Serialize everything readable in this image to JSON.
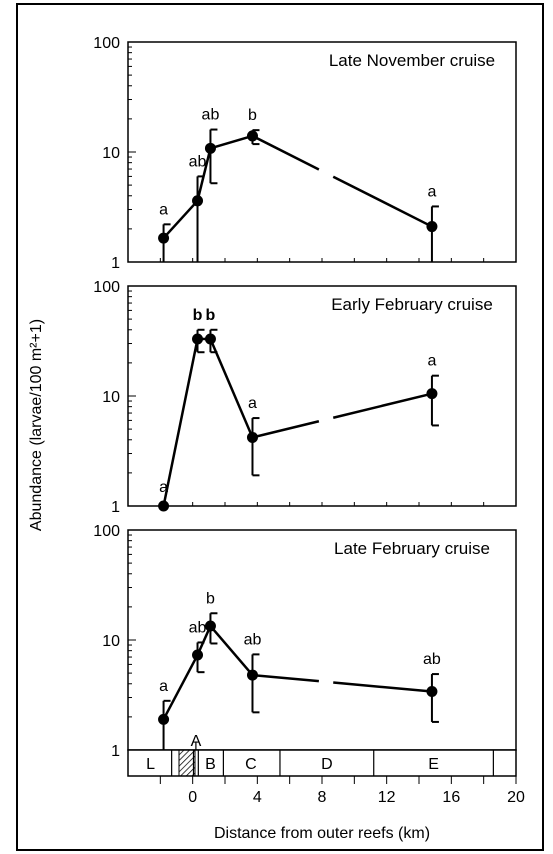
{
  "figure": {
    "ylabel": "Abundance (larvae/100 m²+1)",
    "xlabel": "Distance from outer reefs (km)",
    "x_ticks": [
      "0",
      "4",
      "8",
      "12",
      "16",
      "20"
    ],
    "y_ticks": [
      "1",
      "10",
      "100"
    ]
  },
  "zone_bar": {
    "labels": [
      "L",
      "A",
      "B",
      "C",
      "D",
      "E"
    ]
  },
  "chart_data": [
    {
      "type": "line",
      "title": "Late November cruise",
      "xlim": [
        -4,
        20
      ],
      "ylim": [
        1,
        100
      ],
      "yscale": "log",
      "points": [
        {
          "x": -1.8,
          "y": 1.65,
          "lo": 1.0,
          "hi": 2.2,
          "sig": "a"
        },
        {
          "x": 0.3,
          "y": 3.6,
          "lo": 1.0,
          "hi": 6.0,
          "sig": "ab"
        },
        {
          "x": 1.1,
          "y": 10.8,
          "lo": 5.2,
          "hi": 16.0,
          "sig": "ab"
        },
        {
          "x": 3.7,
          "y": 14.0,
          "lo": 11.8,
          "hi": 15.8,
          "sig": "b"
        },
        {
          "x": 14.8,
          "y": 2.1,
          "lo": 1.0,
          "hi": 3.2,
          "sig": "a"
        }
      ],
      "gap_between": [
        3,
        4
      ]
    },
    {
      "type": "line",
      "title": "Early February cruise",
      "xlim": [
        -4,
        20
      ],
      "ylim": [
        1,
        100
      ],
      "yscale": "log",
      "points": [
        {
          "x": -1.8,
          "y": 1.0,
          "lo": null,
          "hi": null,
          "sig": "a"
        },
        {
          "x": 0.3,
          "y": 33.0,
          "lo": 25.0,
          "hi": 40.0,
          "sig": "b",
          "bold": true
        },
        {
          "x": 1.1,
          "y": 33.0,
          "lo": 25.0,
          "hi": 40.0,
          "sig": "b",
          "bold": true
        },
        {
          "x": 3.7,
          "y": 4.2,
          "lo": 1.9,
          "hi": 6.3,
          "sig": "a"
        },
        {
          "x": 14.8,
          "y": 10.5,
          "lo": 5.4,
          "hi": 15.3,
          "sig": "a"
        }
      ],
      "gap_between": [
        3,
        4
      ]
    },
    {
      "type": "line",
      "title": "Late February cruise",
      "xlim": [
        -4,
        20
      ],
      "ylim": [
        1,
        100
      ],
      "yscale": "log",
      "points": [
        {
          "x": -1.8,
          "y": 1.9,
          "lo": 1.0,
          "hi": 2.8,
          "sig": "a"
        },
        {
          "x": 0.3,
          "y": 7.3,
          "lo": 5.1,
          "hi": 9.5,
          "sig": "ab"
        },
        {
          "x": 1.1,
          "y": 13.4,
          "lo": 9.3,
          "hi": 17.5,
          "sig": "b"
        },
        {
          "x": 3.7,
          "y": 4.8,
          "lo": 2.2,
          "hi": 7.4,
          "sig": "ab"
        },
        {
          "x": 14.8,
          "y": 3.4,
          "lo": 1.8,
          "hi": 4.9,
          "sig": "ab"
        }
      ],
      "gap_between": [
        3,
        4
      ]
    }
  ]
}
